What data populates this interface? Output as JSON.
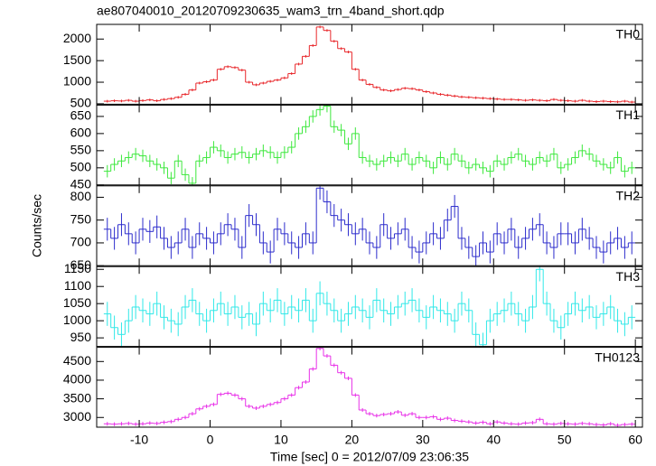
{
  "chart_data": {
    "type": "step",
    "title": "ae807040010_20120709230635_wam3_trn_4band_short.qdp",
    "xlabel": "Time [sec] 0 = 2012/07/09 23:06:35",
    "ylabel": "Counts/sec",
    "xlim": [
      -16,
      61
    ],
    "xticks": [
      -10,
      0,
      10,
      20,
      30,
      40,
      50,
      60
    ],
    "x": [
      -14.5,
      -13.5,
      -12.5,
      -11.5,
      -10.5,
      -9.5,
      -8.5,
      -7.5,
      -6.5,
      -5.5,
      -4.5,
      -3.5,
      -2.5,
      -1.5,
      -0.5,
      0.5,
      1.5,
      2.5,
      3.5,
      4.5,
      5.5,
      6.5,
      7.5,
      8.5,
      9.5,
      10.5,
      11.5,
      12.5,
      13.5,
      14.5,
      15.5,
      16.5,
      17.5,
      18.5,
      19.5,
      20.5,
      21.5,
      22.5,
      23.5,
      24.5,
      25.5,
      26.5,
      27.5,
      28.5,
      29.5,
      30.5,
      31.5,
      32.5,
      33.5,
      34.5,
      35.5,
      36.5,
      37.5,
      38.5,
      39.5,
      40.5,
      41.5,
      42.5,
      43.5,
      44.5,
      45.5,
      46.5,
      47.5,
      48.5,
      49.5,
      50.5,
      51.5,
      52.5,
      53.5,
      54.5,
      55.5,
      56.5,
      57.5,
      58.5,
      59.5
    ],
    "panels": [
      {
        "name": "TH0",
        "color": "#e8262a",
        "error": 30,
        "ylim": [
          490,
          2340
        ],
        "yticks": [
          500,
          1000,
          1500,
          2000
        ],
        "values": [
          560,
          570,
          565,
          580,
          560,
          575,
          590,
          570,
          600,
          620,
          650,
          720,
          820,
          980,
          1010,
          1050,
          1300,
          1360,
          1340,
          1280,
          1000,
          940,
          980,
          1020,
          1050,
          1100,
          1200,
          1420,
          1600,
          1850,
          2280,
          2200,
          1950,
          1780,
          1700,
          1300,
          1050,
          950,
          880,
          820,
          800,
          830,
          860,
          850,
          820,
          780,
          750,
          720,
          700,
          680,
          660,
          650,
          640,
          630,
          620,
          610,
          600,
          600,
          590,
          580,
          590,
          580,
          570,
          600,
          580,
          570,
          560,
          580,
          560,
          550,
          560,
          550,
          545,
          560,
          540
        ]
      },
      {
        "name": "TH1",
        "color": "#3ce83c",
        "error": 18,
        "ylim": [
          450,
          683
        ],
        "yticks": [
          450,
          500,
          550,
          600,
          650
        ],
        "values": [
          490,
          510,
          520,
          530,
          540,
          535,
          520,
          510,
          500,
          470,
          520,
          480,
          455,
          520,
          530,
          560,
          550,
          530,
          540,
          545,
          530,
          540,
          550,
          545,
          530,
          545,
          560,
          600,
          620,
          650,
          670,
          680,
          620,
          610,
          570,
          600,
          530,
          520,
          510,
          520,
          530,
          520,
          540,
          510,
          530,
          520,
          500,
          530,
          510,
          540,
          520,
          500,
          510,
          500,
          490,
          520,
          510,
          530,
          540,
          520,
          510,
          530,
          520,
          540,
          500,
          510,
          530,
          550,
          540,
          520,
          510,
          500,
          530,
          490,
          500
        ]
      },
      {
        "name": "TH2",
        "color": "#2c2ccc",
        "error": 25,
        "ylim": [
          650,
          825
        ],
        "yticks": [
          650,
          700,
          750,
          800
        ],
        "values": [
          730,
          710,
          740,
          720,
          700,
          730,
          725,
          735,
          710,
          690,
          700,
          730,
          690,
          720,
          710,
          700,
          720,
          740,
          730,
          690,
          760,
          740,
          700,
          680,
          730,
          720,
          700,
          690,
          720,
          700,
          820,
          790,
          760,
          750,
          740,
          720,
          730,
          700,
          690,
          740,
          710,
          720,
          730,
          690,
          680,
          700,
          720,
          710,
          750,
          780,
          710,
          690,
          670,
          700,
          680,
          720,
          700,
          730,
          690,
          710,
          730,
          740,
          700,
          690,
          720,
          720,
          700,
          730,
          710,
          690,
          680,
          700,
          710,
          690,
          700
        ]
      },
      {
        "name": "TH3",
        "color": "#30e8e8",
        "error": 35,
        "ylim": [
          925,
          1158
        ],
        "yticks": [
          950,
          1000,
          1050,
          1100,
          1150
        ],
        "values": [
          1020,
          980,
          960,
          1000,
          1040,
          1030,
          1020,
          1050,
          1010,
          1000,
          990,
          1040,
          1060,
          1020,
          1000,
          1030,
          1050,
          1020,
          1040,
          1010,
          1020,
          990,
          1050,
          1030,
          1060,
          1020,
          1040,
          1030,
          1060,
          1000,
          1080,
          1050,
          1030,
          1000,
          1020,
          1040,
          1030,
          1010,
          1060,
          1030,
          1020,
          1040,
          1050,
          1060,
          1030,
          1010,
          1040,
          1030,
          1020,
          1000,
          1050,
          1030,
          960,
          930,
          1000,
          1020,
          1030,
          1050,
          1020,
          1000,
          1040,
          1150,
          1050,
          1000,
          980,
          1020,
          1050,
          1030,
          1040,
          1010,
          1020,
          1040,
          1000,
          990,
          1010
        ]
      },
      {
        "name": "TH0123",
        "color": "#e830e8",
        "error": 50,
        "ylim": [
          2740,
          4880
        ],
        "yticks": [
          3000,
          3500,
          4000,
          4500
        ],
        "values": [
          2830,
          2820,
          2830,
          2840,
          2820,
          2830,
          2850,
          2840,
          2870,
          2890,
          2950,
          3000,
          3100,
          3230,
          3300,
          3350,
          3620,
          3650,
          3600,
          3500,
          3300,
          3250,
          3300,
          3350,
          3400,
          3500,
          3600,
          3800,
          3950,
          4300,
          4850,
          4650,
          4400,
          4200,
          4050,
          3600,
          3200,
          3100,
          3050,
          3080,
          3100,
          3150,
          3060,
          3100,
          3000,
          3000,
          3020,
          2950,
          2980,
          2920,
          2900,
          2880,
          2850,
          2870,
          2830,
          2880,
          2850,
          2830,
          2820,
          2850,
          2860,
          2950,
          2830,
          2820,
          2840,
          2830,
          2820,
          2840,
          2830,
          2810,
          2800,
          2830,
          2790,
          2810,
          2820
        ]
      }
    ]
  }
}
